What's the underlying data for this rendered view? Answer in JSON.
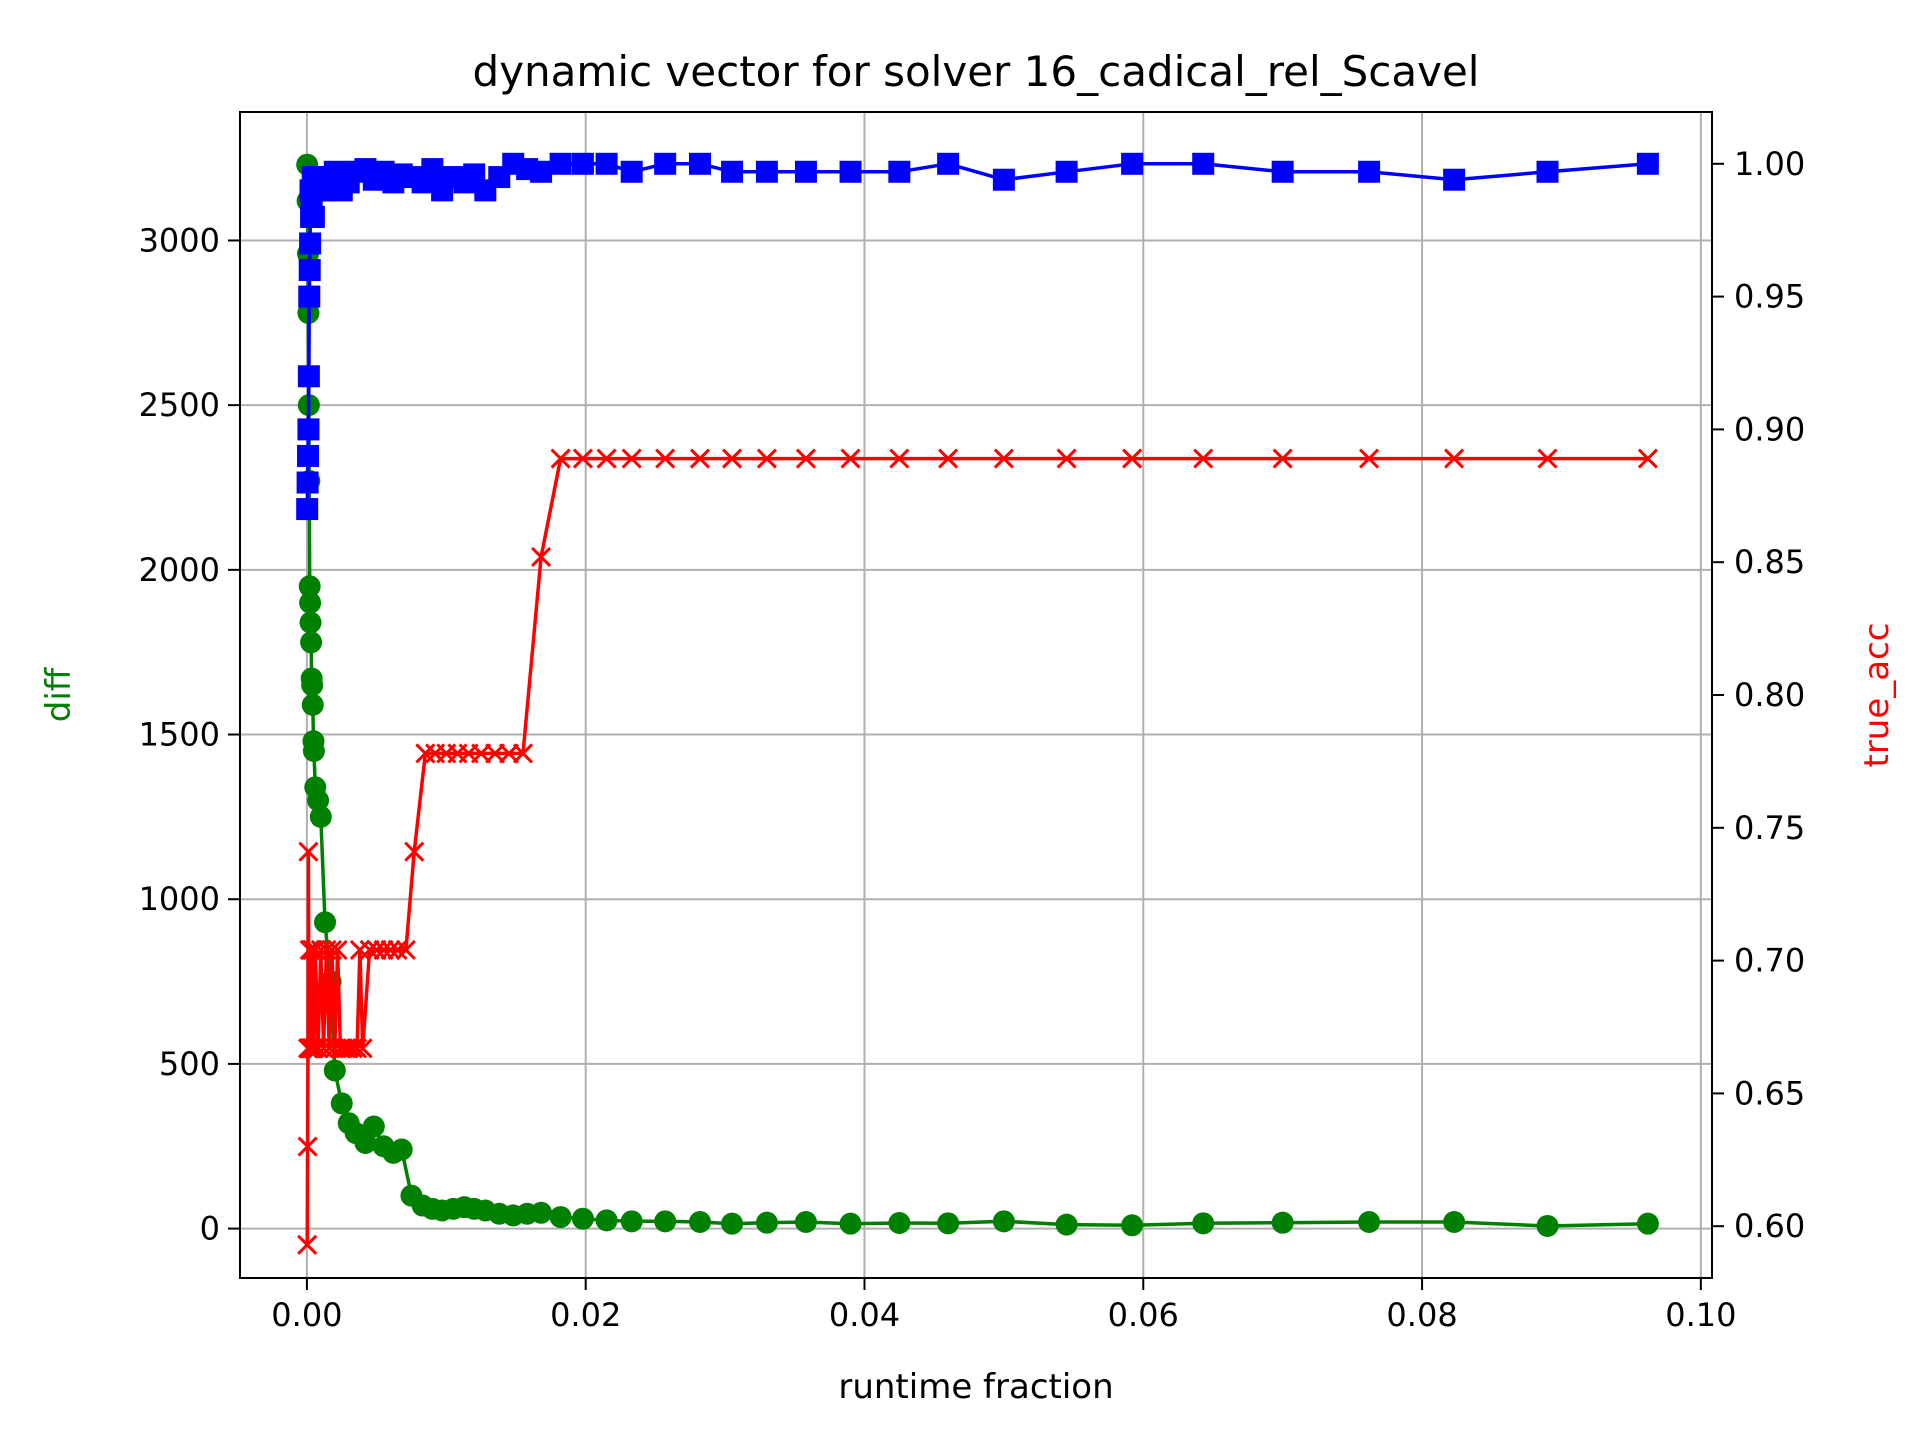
{
  "chart_data": {
    "type": "line",
    "title": "dynamic vector for solver 16_cadical_rel_Scavel",
    "xlabel": "runtime fraction",
    "ylabel_left": "diff",
    "ylabel_right": "true_acc",
    "xlim": [
      -0.0048,
      0.1008
    ],
    "ylim_left": [
      -150,
      3390
    ],
    "ylim_right": [
      0.5805,
      1.0195
    ],
    "x_ticks": [
      "0.00",
      "0.02",
      "0.04",
      "0.06",
      "0.08",
      "0.10"
    ],
    "y_left_ticks": [
      "0",
      "500",
      "1000",
      "1500",
      "2000",
      "2500",
      "3000"
    ],
    "y_right_ticks": [
      "0.60",
      "0.65",
      "0.70",
      "0.75",
      "0.80",
      "0.85",
      "0.90",
      "0.95",
      "1.00"
    ],
    "grid": true,
    "series": [
      {
        "axis": "left",
        "color": "#008000",
        "marker": "circle",
        "x": [
          2e-05,
          5e-05,
          8e-05,
          0.00011,
          0.00014,
          0.00017,
          0.0002,
          0.00023,
          0.00026,
          0.0003,
          0.00034,
          0.00038,
          0.00042,
          0.00047,
          0.0005,
          0.0006,
          0.0008,
          0.001,
          0.0013,
          0.0017,
          0.002,
          0.0025,
          0.003,
          0.0035,
          0.0042,
          0.0048,
          0.0055,
          0.0062,
          0.0068,
          0.0075,
          0.0083,
          0.009,
          0.0097,
          0.0105,
          0.0113,
          0.012,
          0.0128,
          0.0138,
          0.0148,
          0.0158,
          0.0168,
          0.0182,
          0.0198,
          0.0215,
          0.0233,
          0.0257,
          0.0282,
          0.0305,
          0.033,
          0.0358,
          0.039,
          0.0425,
          0.046,
          0.05,
          0.0545,
          0.0592,
          0.0643,
          0.07,
          0.0762,
          0.0823,
          0.089,
          0.0962
        ],
        "y": [
          3230,
          3120,
          2960,
          2780,
          2500,
          2270,
          1950,
          1900,
          1840,
          1780,
          1670,
          1650,
          1590,
          1480,
          1450,
          1340,
          1300,
          1250,
          930,
          750,
          480,
          380,
          320,
          290,
          260,
          310,
          250,
          230,
          240,
          100,
          70,
          60,
          55,
          60,
          65,
          60,
          55,
          45,
          40,
          45,
          48,
          35,
          30,
          25,
          22,
          22,
          20,
          15,
          18,
          20,
          15,
          17,
          16,
          22,
          12,
          10,
          16,
          18,
          20,
          20,
          8,
          15
        ]
      },
      {
        "axis": "right",
        "color": "#0000ff",
        "marker": "square",
        "x": [
          2e-05,
          5e-05,
          8e-05,
          0.00011,
          0.00014,
          0.00017,
          0.0002,
          0.00023,
          0.00026,
          0.0003,
          0.00034,
          0.00038,
          0.00042,
          0.00047,
          0.0005,
          0.0006,
          0.0008,
          0.001,
          0.0013,
          0.0017,
          0.002,
          0.0025,
          0.003,
          0.0035,
          0.0042,
          0.0048,
          0.0055,
          0.0062,
          0.0068,
          0.0075,
          0.0083,
          0.009,
          0.0097,
          0.0105,
          0.0113,
          0.012,
          0.0128,
          0.0138,
          0.0148,
          0.0158,
          0.0168,
          0.0182,
          0.0198,
          0.0215,
          0.0233,
          0.0257,
          0.0282,
          0.0305,
          0.033,
          0.0358,
          0.039,
          0.0425,
          0.046,
          0.05,
          0.0545,
          0.0592,
          0.0643,
          0.07,
          0.0762,
          0.0823,
          0.089,
          0.0962
        ],
        "y": [
          0.87,
          0.88,
          0.89,
          0.9,
          0.92,
          0.95,
          0.96,
          0.97,
          0.99,
          0.98,
          0.985,
          0.99,
          0.995,
          0.99,
          0.98,
          0.995,
          0.99,
          0.995,
          0.99,
          0.995,
          0.997,
          0.99,
          0.993,
          0.997,
          0.998,
          0.994,
          0.997,
          0.993,
          0.996,
          0.995,
          0.993,
          0.998,
          0.99,
          0.995,
          0.993,
          0.996,
          0.99,
          0.995,
          1.0,
          0.998,
          0.997,
          1.0,
          1.0,
          1.0,
          0.997,
          1.0,
          1.0,
          0.997,
          0.997,
          0.997,
          0.997,
          0.997,
          1.0,
          0.994,
          0.997,
          1.0,
          1.0,
          0.997,
          0.997,
          0.994,
          0.997,
          1.0
        ]
      },
      {
        "axis": "right",
        "color": "#ff0000",
        "marker": "x",
        "x": [
          2e-05,
          5e-05,
          8e-05,
          0.00011,
          0.00014,
          0.00017,
          0.0002,
          0.00023,
          0.00026,
          0.0003,
          0.00034,
          0.00038,
          0.00042,
          0.00047,
          0.0005,
          0.0006,
          0.0008,
          0.001,
          0.0012,
          0.0014,
          0.0016,
          0.0018,
          0.002,
          0.0022,
          0.0024,
          0.0026,
          0.0028,
          0.003,
          0.0033,
          0.0036,
          0.0038,
          0.004,
          0.0045,
          0.005,
          0.0055,
          0.006,
          0.0065,
          0.0071,
          0.0077,
          0.0085,
          0.0092,
          0.01,
          0.0108,
          0.0116,
          0.0125,
          0.0135,
          0.0145,
          0.0155,
          0.0168,
          0.0182,
          0.0198,
          0.0215,
          0.0233,
          0.0257,
          0.0282,
          0.0305,
          0.033,
          0.0358,
          0.039,
          0.0425,
          0.046,
          0.05,
          0.0545,
          0.0592,
          0.0643,
          0.07,
          0.0762,
          0.0823,
          0.089,
          0.0962
        ],
        "y": [
          0.593,
          0.63,
          0.667,
          0.741,
          0.667,
          0.667,
          0.704,
          0.667,
          0.667,
          0.704,
          0.667,
          0.667,
          0.704,
          0.667,
          0.667,
          0.704,
          0.667,
          0.704,
          0.667,
          0.704,
          0.667,
          0.704,
          0.667,
          0.704,
          0.667,
          0.667,
          0.667,
          0.667,
          0.667,
          0.667,
          0.704,
          0.667,
          0.704,
          0.704,
          0.704,
          0.704,
          0.704,
          0.704,
          0.741,
          0.778,
          0.778,
          0.778,
          0.778,
          0.778,
          0.778,
          0.778,
          0.778,
          0.778,
          0.852,
          0.889,
          0.889,
          0.889,
          0.889,
          0.889,
          0.889,
          0.889,
          0.889,
          0.889,
          0.889,
          0.889,
          0.889,
          0.889,
          0.889,
          0.889,
          0.889,
          0.889,
          0.889,
          0.889,
          0.889,
          0.889
        ]
      }
    ]
  }
}
